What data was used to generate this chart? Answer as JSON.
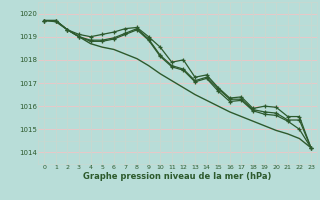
{
  "bg_color": "#b8ddd8",
  "grid_major_color": "#e8c8c8",
  "grid_minor_color": "#c8d8d0",
  "line_color": "#2d5a2d",
  "xlabel": "Graphe pression niveau de la mer (hPa)",
  "ylim": [
    1013.5,
    1020.5
  ],
  "xlim": [
    -0.5,
    23.5
  ],
  "yticks": [
    1014,
    1015,
    1016,
    1017,
    1018,
    1019,
    1020
  ],
  "xticks": [
    0,
    1,
    2,
    3,
    4,
    5,
    6,
    7,
    8,
    9,
    10,
    11,
    12,
    13,
    14,
    15,
    16,
    17,
    18,
    19,
    20,
    21,
    22,
    23
  ],
  "series_with_markers": [
    [
      1019.7,
      1019.7,
      1019.3,
      1019.1,
      1019.0,
      1019.1,
      1019.2,
      1019.35,
      1019.4,
      1019.0,
      1018.55,
      1017.9,
      1018.0,
      1017.25,
      1017.35,
      1016.8,
      1016.35,
      1016.4,
      1015.9,
      1016.0,
      1015.95,
      1015.55,
      1015.55,
      1014.2
    ],
    [
      1019.7,
      1019.7,
      1019.3,
      1019.0,
      1018.85,
      1018.85,
      1018.95,
      1019.15,
      1019.35,
      1018.9,
      1018.2,
      1017.75,
      1017.6,
      1017.1,
      1017.25,
      1016.75,
      1016.3,
      1016.3,
      1015.85,
      1015.75,
      1015.7,
      1015.4,
      1015.4,
      1014.2
    ]
  ],
  "smooth_line": [
    1019.7,
    1019.65,
    1019.3,
    1019.0,
    1018.7,
    1018.55,
    1018.45,
    1018.25,
    1018.05,
    1017.75,
    1017.4,
    1017.1,
    1016.8,
    1016.5,
    1016.25,
    1016.0,
    1015.75,
    1015.55,
    1015.35,
    1015.15,
    1014.95,
    1014.8,
    1014.6,
    1014.2
  ],
  "bottom_line": [
    1019.7,
    1019.7,
    1019.3,
    1019.0,
    1018.8,
    1018.8,
    1018.9,
    1019.1,
    1019.3,
    1018.85,
    1018.15,
    1017.7,
    1017.55,
    1017.05,
    1017.2,
    1016.65,
    1016.2,
    1016.25,
    1015.8,
    1015.65,
    1015.6,
    1015.35,
    1015.0,
    1014.2
  ]
}
